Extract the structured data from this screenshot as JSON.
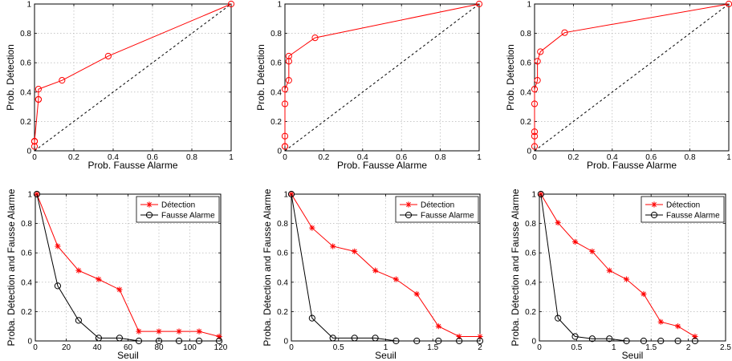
{
  "chart_data": [
    {
      "type": "line",
      "xlabel": "Prob. Fausse Alarme",
      "ylabel": "Prob. Détection",
      "xlim": [
        0,
        1
      ],
      "ylim": [
        0,
        1
      ],
      "xticks": [
        "0",
        "0.2",
        "0.4",
        "0.6",
        "0.8",
        "1"
      ],
      "yticks": [
        "0",
        "0.2",
        "0.4",
        "0.6",
        "0.8",
        "1"
      ],
      "grid": true,
      "diagonal": true,
      "series": [
        {
          "color": "#ff0000",
          "marker": "circle",
          "x": [
            1,
            0.375,
            0.14,
            0.02,
            0.02,
            0.02,
            0.0,
            0.0,
            0.0,
            0.0,
            0.0
          ],
          "y": [
            1,
            0.645,
            0.48,
            0.42,
            0.35,
            0.35,
            0.065,
            0.065,
            0.065,
            0.065,
            0.03
          ]
        }
      ]
    },
    {
      "type": "line",
      "xlabel": "Prob. Fausse Alarme",
      "ylabel": "Prob. Détection",
      "xlim": [
        0,
        1
      ],
      "ylim": [
        0,
        1
      ],
      "xticks": [
        "0",
        "0.2",
        "0.4",
        "0.6",
        "0.8",
        "1"
      ],
      "yticks": [
        "0",
        "0.2",
        "0.4",
        "0.6",
        "0.8",
        "1"
      ],
      "grid": true,
      "diagonal": true,
      "series": [
        {
          "color": "#ff0000",
          "marker": "circle",
          "x": [
            1,
            0.155,
            0.02,
            0.02,
            0.02,
            0.0,
            0.0,
            0.0,
            0.0,
            0.0
          ],
          "y": [
            1,
            0.77,
            0.645,
            0.61,
            0.48,
            0.42,
            0.32,
            0.1,
            0.03,
            0.03
          ]
        }
      ]
    },
    {
      "type": "line",
      "xlabel": "Prob. Fausse Alarme",
      "ylabel": "Prob. Détection",
      "xlim": [
        0,
        1
      ],
      "ylim": [
        0,
        1
      ],
      "xticks": [
        "0",
        "0.2",
        "0.4",
        "0.6",
        "0.8",
        "1"
      ],
      "yticks": [
        "0",
        "0.2",
        "0.4",
        "0.6",
        "0.8",
        "1"
      ],
      "grid": true,
      "diagonal": true,
      "series": [
        {
          "color": "#ff0000",
          "marker": "circle",
          "x": [
            1,
            0.155,
            0.03,
            0.015,
            0.015,
            0.0,
            0.0,
            0.0,
            0.0,
            0.0
          ],
          "y": [
            1,
            0.805,
            0.675,
            0.61,
            0.48,
            0.42,
            0.32,
            0.13,
            0.1,
            0.03
          ]
        }
      ]
    },
    {
      "type": "line",
      "xlabel": "Seuil",
      "ylabel": "Proba. Détection and Fausse Alarme",
      "xlim": [
        0,
        120
      ],
      "ylim": [
        0,
        1
      ],
      "xticks": [
        "0",
        "20",
        "40",
        "60",
        "80",
        "100",
        "120"
      ],
      "yticks": [
        "0",
        "0.2",
        "0.4",
        "0.6",
        "0.8",
        "1"
      ],
      "grid": true,
      "legend": "top-right",
      "series": [
        {
          "name": "Détection",
          "color": "#ff0000",
          "marker": "star",
          "x": [
            1,
            14.5,
            28,
            41,
            54.5,
            67,
            80,
            93,
            106,
            119
          ],
          "y": [
            1,
            0.645,
            0.48,
            0.42,
            0.35,
            0.065,
            0.065,
            0.065,
            0.065,
            0.03
          ]
        },
        {
          "name": "Fausse Alarme",
          "color": "#000000",
          "marker": "circle",
          "x": [
            1,
            14.5,
            28,
            41,
            54.5,
            67,
            80,
            93,
            106,
            119
          ],
          "y": [
            1,
            0.375,
            0.14,
            0.02,
            0.02,
            0.0,
            0.0,
            0.0,
            0.0,
            0.0
          ]
        }
      ]
    },
    {
      "type": "line",
      "xlabel": "Seuil",
      "ylabel": "Proba. Détection and Fausse Alarme",
      "xlim": [
        0,
        2
      ],
      "ylim": [
        0,
        1
      ],
      "xticks": [
        "0",
        "0.5",
        "1",
        "1.5",
        "2"
      ],
      "yticks": [
        "0",
        "0.2",
        "0.4",
        "0.6",
        "0.8",
        "1"
      ],
      "grid": true,
      "legend": "top-right",
      "series": [
        {
          "name": "Détection",
          "color": "#ff0000",
          "marker": "star",
          "x": [
            0,
            0.22,
            0.44,
            0.67,
            0.89,
            1.11,
            1.33,
            1.56,
            1.78,
            2.0
          ],
          "y": [
            1,
            0.77,
            0.645,
            0.61,
            0.48,
            0.42,
            0.32,
            0.1,
            0.03,
            0.03
          ]
        },
        {
          "name": "Fausse Alarme",
          "color": "#000000",
          "marker": "circle",
          "x": [
            0,
            0.22,
            0.44,
            0.67,
            0.89,
            1.11,
            1.33,
            1.56,
            1.78,
            2.0
          ],
          "y": [
            1,
            0.155,
            0.02,
            0.02,
            0.02,
            0.0,
            0.0,
            0.0,
            0.0,
            0.0
          ]
        }
      ]
    },
    {
      "type": "line",
      "xlabel": "Seuil",
      "ylabel": "Proba. Détection and Fausse Alarme",
      "xlim": [
        0,
        2.5
      ],
      "ylim": [
        0,
        1
      ],
      "xticks": [
        "0",
        "0.5",
        "1",
        "1.5",
        "2",
        "2.5"
      ],
      "yticks": [
        "0",
        "0.2",
        "0.4",
        "0.6",
        "0.8",
        "1"
      ],
      "grid": true,
      "legend": "top-right",
      "series": [
        {
          "name": "Détection",
          "color": "#ff0000",
          "marker": "star",
          "x": [
            0.02,
            0.25,
            0.48,
            0.71,
            0.94,
            1.17,
            1.4,
            1.63,
            1.86,
            2.09
          ],
          "y": [
            1,
            0.805,
            0.675,
            0.61,
            0.48,
            0.42,
            0.32,
            0.13,
            0.1,
            0.03
          ]
        },
        {
          "name": "Fausse Alarme",
          "color": "#000000",
          "marker": "circle",
          "x": [
            0.02,
            0.25,
            0.48,
            0.71,
            0.94,
            1.17,
            1.4,
            1.63,
            1.86,
            2.09
          ],
          "y": [
            1,
            0.155,
            0.03,
            0.015,
            0.015,
            0.0,
            0.0,
            0.0,
            0.0,
            0.0
          ]
        }
      ]
    }
  ]
}
